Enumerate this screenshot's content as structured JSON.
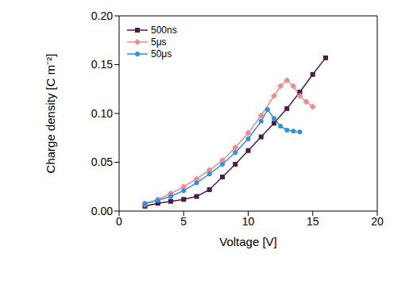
{
  "chart_data": {
    "type": "line",
    "x_label": "Voltage [V]",
    "y_label": "Charge density [C m⁻²]",
    "xlim": [
      0,
      20
    ],
    "xticks": [
      0,
      5,
      10,
      15,
      20
    ],
    "ylim": [
      0,
      0.2
    ],
    "yticks": [
      {
        "value": 0,
        "label": "0.00"
      },
      {
        "value": 0.05,
        "label": "0.05"
      },
      {
        "value": 0.1,
        "label": "0.10"
      },
      {
        "value": 0.15,
        "label": "0.15"
      },
      {
        "value": 0.2,
        "label": "0.20"
      }
    ],
    "grid": false,
    "legend": "upper left",
    "series": [
      {
        "name": "500ns",
        "color": "#4a1d48",
        "marker": "square",
        "x": [
          2,
          3,
          4,
          5,
          6,
          7,
          8,
          9,
          10,
          11,
          12,
          13,
          14,
          15,
          16
        ],
        "values": [
          0.005,
          0.008,
          0.01,
          0.012,
          0.015,
          0.022,
          0.035,
          0.048,
          0.062,
          0.076,
          0.09,
          0.105,
          0.122,
          0.14,
          0.157
        ]
      },
      {
        "name": "5μs",
        "color": "#f08a8a",
        "marker": "diamond",
        "x": [
          2,
          3,
          4,
          5,
          6,
          7,
          8,
          9,
          10,
          11,
          12,
          12.5,
          13,
          13.5,
          14,
          14.5,
          15
        ],
        "values": [
          0.007,
          0.012,
          0.018,
          0.025,
          0.033,
          0.042,
          0.052,
          0.065,
          0.08,
          0.098,
          0.118,
          0.128,
          0.134,
          0.128,
          0.118,
          0.112,
          0.107
        ]
      },
      {
        "name": "50μs",
        "color": "#2f8fe8",
        "marker": "circle",
        "x": [
          2,
          3,
          4,
          5,
          6,
          7,
          8,
          9,
          10,
          11,
          11.5,
          12,
          12.5,
          13,
          13.5,
          14
        ],
        "values": [
          0.008,
          0.011,
          0.015,
          0.021,
          0.029,
          0.038,
          0.048,
          0.06,
          0.074,
          0.092,
          0.104,
          0.095,
          0.087,
          0.083,
          0.082,
          0.081
        ]
      }
    ]
  }
}
